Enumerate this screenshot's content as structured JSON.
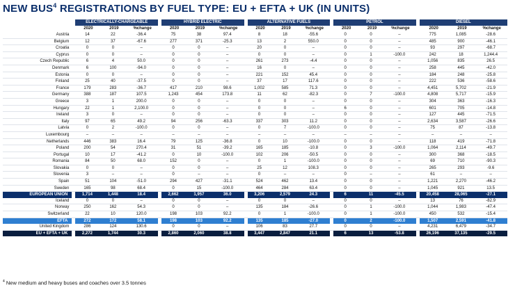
{
  "title": {
    "text": "NEW BUS",
    "sup": "4",
    "rest": " REGISTRATIONS BY FUEL TYPE: EU + EFTA + UK (IN UNITS)"
  },
  "groups": [
    "ELECTRICALLY-CHARGEABLE",
    "HYBRID ELECTRIC",
    "ALTERNATIVE FUELS",
    "PETROL",
    "DIESEL"
  ],
  "subheaders": [
    "2020",
    "2019",
    "%change"
  ],
  "rows": [
    {
      "name": "Austria",
      "type": "country",
      "vals": [
        "14",
        "22",
        "-36.4",
        "75",
        "38",
        "97.4",
        "8",
        "18",
        "-55.6",
        "0",
        "0",
        "–",
        "775",
        "1,085",
        "-28.6"
      ]
    },
    {
      "name": "Belgium",
      "type": "country",
      "vals": [
        "12",
        "37",
        "-67.6",
        "277",
        "371",
        "-25.3",
        "13",
        "2",
        "550.0",
        "0",
        "0",
        "–",
        "485",
        "900",
        "-46.1"
      ]
    },
    {
      "name": "Croatia",
      "type": "country",
      "vals": [
        "0",
        "0",
        "–",
        "0",
        "0",
        "–",
        "20",
        "0",
        "–",
        "0",
        "0",
        "–",
        "93",
        "297",
        "-68.7"
      ]
    },
    {
      "name": "Cyprus",
      "type": "country",
      "vals": [
        "0",
        "0",
        "–",
        "0",
        "0",
        "–",
        "0",
        "0",
        "–",
        "0",
        "1",
        "-100.0",
        "242",
        "18",
        "1,244.4"
      ]
    },
    {
      "name": "Czech Republic",
      "type": "country",
      "vals": [
        "6",
        "4",
        "50.0",
        "0",
        "0",
        "–",
        "261",
        "273",
        "-4.4",
        "0",
        "0",
        "–",
        "1,056",
        "835",
        "26.5"
      ]
    },
    {
      "name": "Denmark",
      "type": "country",
      "vals": [
        "6",
        "100",
        "-94.0",
        "0",
        "0",
        "–",
        "16",
        "0",
        "–",
        "0",
        "0",
        "–",
        "258",
        "445",
        "-42.0"
      ]
    },
    {
      "name": "Estonia",
      "type": "country",
      "vals": [
        "0",
        "0",
        "–",
        "0",
        "0",
        "–",
        "221",
        "152",
        "45.4",
        "0",
        "0",
        "–",
        "184",
        "248",
        "-25.8"
      ]
    },
    {
      "name": "Finland",
      "type": "country",
      "vals": [
        "25",
        "40",
        "-37.5",
        "0",
        "0",
        "–",
        "37",
        "17",
        "117.6",
        "0",
        "0",
        "–",
        "222",
        "536",
        "-58.6"
      ]
    },
    {
      "name": "France",
      "type": "country",
      "vals": [
        "179",
        "283",
        "-36.7",
        "417",
        "210",
        "98.6",
        "1,002",
        "585",
        "71.3",
        "0",
        "0",
        "–",
        "4,451",
        "5,702",
        "-21.9"
      ]
    },
    {
      "name": "Germany",
      "type": "country",
      "vals": [
        "388",
        "187",
        "107.5",
        "1,243",
        "454",
        "173.8",
        "11",
        "62",
        "-82.3",
        "0",
        "7",
        "-100.0",
        "4,808",
        "5,717",
        "-15.9"
      ]
    },
    {
      "name": "Greece",
      "type": "country",
      "vals": [
        "3",
        "1",
        "200.0",
        "0",
        "0",
        "–",
        "0",
        "0",
        "–",
        "0",
        "0",
        "–",
        "304",
        "363",
        "-16.3"
      ]
    },
    {
      "name": "Hungary",
      "type": "country",
      "vals": [
        "22",
        "1",
        "2,100.0",
        "0",
        "0",
        "–",
        "0",
        "0",
        "–",
        "6",
        "0",
        "–",
        "601",
        "705",
        "-14.8"
      ]
    },
    {
      "name": "Ireland",
      "type": "country",
      "vals": [
        "3",
        "0",
        "–",
        "0",
        "0",
        "–",
        "0",
        "0",
        "–",
        "0",
        "0",
        "–",
        "127",
        "445",
        "-71.5"
      ]
    },
    {
      "name": "Italy",
      "type": "country",
      "vals": [
        "97",
        "65",
        "49.2",
        "94",
        "256",
        "-63.3",
        "337",
        "303",
        "11.2",
        "0",
        "0",
        "–",
        "2,634",
        "3,587",
        "-26.6"
      ]
    },
    {
      "name": "Latvia",
      "type": "country",
      "vals": [
        "0",
        "2",
        "-100.0",
        "0",
        "0",
        "–",
        "0",
        "7",
        "-100.0",
        "0",
        "0",
        "–",
        "75",
        "87",
        "-13.8"
      ]
    },
    {
      "name": "Luxembourg",
      "type": "country",
      "vals": [
        "–",
        "–",
        "–",
        "–",
        "–",
        "–",
        "–",
        "–",
        "–",
        "–",
        "–",
        "–",
        "–",
        "–",
        "–"
      ]
    },
    {
      "name": "Netherlands",
      "type": "country",
      "vals": [
        "446",
        "383",
        "16.4",
        "79",
        "125",
        "-36.8",
        "0",
        "10",
        "-100.0",
        "0",
        "0",
        "–",
        "118",
        "419",
        "-71.8"
      ]
    },
    {
      "name": "Poland",
      "type": "country",
      "vals": [
        "200",
        "54",
        "270.4",
        "31",
        "51",
        "-39.2",
        "165",
        "185",
        "-10.8",
        "0",
        "3",
        "-100.0",
        "1,064",
        "2,114",
        "-49.7"
      ]
    },
    {
      "name": "Portugal",
      "type": "country",
      "vals": [
        "10",
        "17",
        "-41.2",
        "0",
        "10",
        "-100.0",
        "102",
        "206",
        "-50.5",
        "0",
        "0",
        "–",
        "300",
        "368",
        "-18.5"
      ]
    },
    {
      "name": "Romania",
      "type": "country",
      "vals": [
        "84",
        "50",
        "68.0",
        "152",
        "0",
        "–",
        "0",
        "1",
        "-100.0",
        "0",
        "0",
        "–",
        "69",
        "710",
        "-90.3"
      ]
    },
    {
      "name": "Slovakia",
      "type": "country",
      "vals": [
        "0",
        "0",
        "–",
        "0",
        "0",
        "–",
        "25",
        "12",
        "108.3",
        "0",
        "0",
        "–",
        "265",
        "293",
        "-9.6"
      ]
    },
    {
      "name": "Slovenia",
      "type": "country",
      "vals": [
        "3",
        "–",
        "–",
        "0",
        "–",
        "–",
        "0",
        "–",
        "–",
        "0",
        "–",
        "–",
        "61",
        "–",
        "–"
      ]
    },
    {
      "name": "Spain",
      "type": "country",
      "vals": [
        "51",
        "104",
        "-51.0",
        "294",
        "427",
        "-31.1",
        "524",
        "462",
        "13.4",
        "0",
        "0",
        "–",
        "1,221",
        "2,270",
        "-46.2"
      ]
    },
    {
      "name": "Sweden",
      "type": "country",
      "vals": [
        "165",
        "98",
        "68.4",
        "0",
        "15",
        "-100.0",
        "464",
        "284",
        "63.4",
        "0",
        "0",
        "–",
        "1,045",
        "921",
        "13.5"
      ]
    },
    {
      "name": "EUROPEAN UNION",
      "type": "eu",
      "vals": [
        "1,714",
        "1,448",
        "18.4",
        "2,662",
        "1,957",
        "36.0",
        "3,206",
        "2,579",
        "24.3",
        "6",
        "11",
        "-45.5",
        "20,458",
        "28,065",
        "-27.1"
      ]
    },
    {
      "name": "Iceland",
      "type": "country",
      "vals": [
        "0",
        "0",
        "–",
        "0",
        "0",
        "–",
        "0",
        "0",
        "–",
        "0",
        "0",
        "–",
        "13",
        "76",
        "-82.9"
      ]
    },
    {
      "name": "Norway",
      "type": "country",
      "vals": [
        "250",
        "162",
        "54.3",
        "0",
        "0",
        "–",
        "135",
        "184",
        "-26.6",
        "0",
        "1",
        "-100.0",
        "1,044",
        "1,983",
        "-47.4"
      ]
    },
    {
      "name": "Switzerland",
      "type": "country",
      "vals": [
        "22",
        "10",
        "120.0",
        "198",
        "103",
        "92.2",
        "0",
        "1",
        "-100.0",
        "0",
        "1",
        "-100.0",
        "450",
        "532",
        "-15.4"
      ]
    },
    {
      "name": "EFTA",
      "type": "efta",
      "vals": [
        "272",
        "172",
        "58.1",
        "198",
        "103",
        "92.2",
        "135",
        "185",
        "-27.0",
        "0",
        "2",
        "-100.0",
        "1,507",
        "2,591",
        "-41.8"
      ]
    },
    {
      "name": "United Kingdom",
      "type": "country",
      "vals": [
        "286",
        "124",
        "130.6",
        "0",
        "0",
        "–",
        "106",
        "83",
        "27.7",
        "0",
        "0",
        "–",
        "4,231",
        "6,479",
        "-34.7"
      ]
    },
    {
      "name": "EU + EFTA + UK",
      "type": "total",
      "vals": [
        "2,272",
        "1,744",
        "30.3",
        "2,860",
        "2,060",
        "38.8",
        "3,447",
        "2,847",
        "21.1",
        "6",
        "13",
        "-53.8",
        "26,196",
        "37,135",
        "-29.5"
      ]
    }
  ],
  "footnote": {
    "sup": "4",
    "text": " New medium and heavy buses and coaches over 3.5 tonnes"
  },
  "colors": {
    "header": "#1f3e74",
    "eu": "#0b2f6b",
    "efta": "#2f7fd1",
    "total": "#0a1e3f",
    "title": "#0b2f6b"
  }
}
